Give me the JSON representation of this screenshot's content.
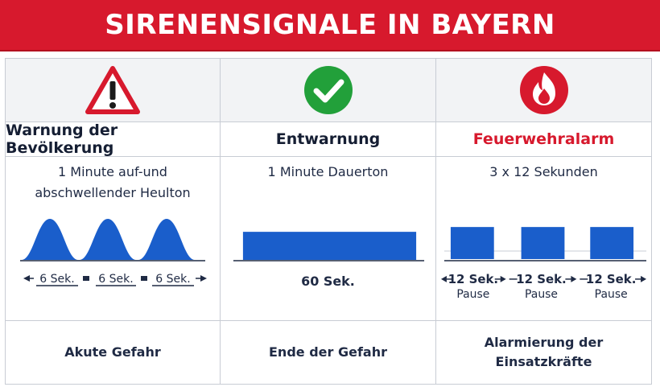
{
  "header": {
    "title": "SIRENENSIGNALE IN BAYERN"
  },
  "colors": {
    "banner_red": "#d7192d",
    "signal_blue": "#1a5ecb",
    "check_green": "#22a03a"
  },
  "columns": [
    {
      "icon": "warning-triangle-icon",
      "title": "Warnung der Bevölkerung",
      "description_line1": "1 Minute auf-und",
      "description_line2": "abschwellender Heulton",
      "segment_labels": [
        "6 Sek.",
        "6 Sek.",
        "6 Sek."
      ],
      "meaning": "Akute Gefahr"
    },
    {
      "icon": "check-circle-icon",
      "title": "Entwarnung",
      "description_line1": "1 Minute Dauerton",
      "duration_label": "60 Sek.",
      "meaning": "Ende der Gefahr"
    },
    {
      "icon": "fire-icon",
      "title": "Feuerwehralarm",
      "description_line1": "3 x 12 Sekunden",
      "segment_labels": [
        "12 Sek.",
        "12 Sek.",
        "12 Sek."
      ],
      "pause_label": "Pause",
      "meaning_line1": "Alarmierung der",
      "meaning_line2": "Einsatzkräfte"
    }
  ]
}
